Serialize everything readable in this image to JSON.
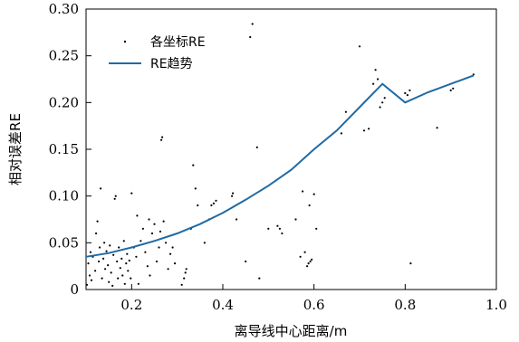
{
  "chart_data": {
    "type": "scatter",
    "xlabel": "离导线中心距离/m",
    "ylabel": "相对误差RE",
    "xlim": [
      0.1,
      1.0
    ],
    "ylim": [
      0.0,
      0.3
    ],
    "xticks": [
      0.2,
      0.4,
      0.6,
      0.8,
      1.0
    ],
    "xtick_labels": [
      "0.2",
      "0.4",
      "0.6",
      "0.8",
      "1.0"
    ],
    "yticks": [
      0,
      0.05,
      0.1,
      0.15,
      0.2,
      0.25,
      0.3
    ],
    "ytick_labels": [
      "0",
      "0.05",
      "0.10",
      "0.15",
      "0.20",
      "0.25",
      "0.30"
    ],
    "grid": false,
    "legend": {
      "placement": "top-left",
      "entries": [
        "各坐标RE",
        "RE趋势"
      ]
    },
    "colors": {
      "scatter": "#000000",
      "trend": "#1f6aa5"
    },
    "series": [
      {
        "name": "各坐标RE",
        "kind": "scatter",
        "points": [
          [
            0.102,
            0.005
          ],
          [
            0.105,
            0.028
          ],
          [
            0.108,
            0.015
          ],
          [
            0.11,
            0.04
          ],
          [
            0.112,
            0.01
          ],
          [
            0.115,
            0.035
          ],
          [
            0.12,
            0.02
          ],
          [
            0.122,
            0.06
          ],
          [
            0.125,
            0.073
          ],
          [
            0.128,
            0.03
          ],
          [
            0.13,
            0.045
          ],
          [
            0.132,
            0.108
          ],
          [
            0.135,
            0.012
          ],
          [
            0.138,
            0.033
          ],
          [
            0.14,
            0.05
          ],
          [
            0.142,
            0.022
          ],
          [
            0.145,
            0.041
          ],
          [
            0.148,
            0.026
          ],
          [
            0.15,
            0.008
          ],
          [
            0.152,
            0.047
          ],
          [
            0.155,
            0.018
          ],
          [
            0.158,
            0.004
          ],
          [
            0.16,
            0.037
          ],
          [
            0.163,
            0.097
          ],
          [
            0.165,
            0.1
          ],
          [
            0.168,
            0.03
          ],
          [
            0.17,
            0.012
          ],
          [
            0.172,
            0.045
          ],
          [
            0.175,
            0.023
          ],
          [
            0.178,
            0.033
          ],
          [
            0.18,
            0.015
          ],
          [
            0.183,
            0.052
          ],
          [
            0.185,
            0.006
          ],
          [
            0.188,
            0.028
          ],
          [
            0.19,
            0.038
          ],
          [
            0.192,
            0.02
          ],
          [
            0.195,
            0.031
          ],
          [
            0.198,
            0.012
          ],
          [
            0.2,
            0.103
          ],
          [
            0.205,
            0.045
          ],
          [
            0.21,
            0.035
          ],
          [
            0.212,
            0.079
          ],
          [
            0.215,
            0.006
          ],
          [
            0.22,
            0.052
          ],
          [
            0.225,
            0.065
          ],
          [
            0.23,
            0.04
          ],
          [
            0.235,
            0.025
          ],
          [
            0.238,
            0.075
          ],
          [
            0.24,
            0.015
          ],
          [
            0.245,
            0.06
          ],
          [
            0.25,
            0.07
          ],
          [
            0.255,
            0.03
          ],
          [
            0.26,
            0.045
          ],
          [
            0.263,
            0.062
          ],
          [
            0.265,
            0.16
          ],
          [
            0.267,
            0.163
          ],
          [
            0.27,
            0.073
          ],
          [
            0.275,
            0.05
          ],
          [
            0.28,
            0.022
          ],
          [
            0.285,
            0.038
          ],
          [
            0.29,
            0.045
          ],
          [
            0.295,
            0.028
          ],
          [
            0.31,
            0.005
          ],
          [
            0.315,
            0.012
          ],
          [
            0.318,
            0.018
          ],
          [
            0.32,
            0.022
          ],
          [
            0.33,
            0.065
          ],
          [
            0.335,
            0.133
          ],
          [
            0.34,
            0.108
          ],
          [
            0.345,
            0.09
          ],
          [
            0.36,
            0.05
          ],
          [
            0.37,
            0.075
          ],
          [
            0.375,
            0.09
          ],
          [
            0.38,
            0.092
          ],
          [
            0.385,
            0.095
          ],
          [
            0.42,
            0.1
          ],
          [
            0.422,
            0.103
          ],
          [
            0.43,
            0.075
          ],
          [
            0.45,
            0.03
          ],
          [
            0.46,
            0.27
          ],
          [
            0.465,
            0.284
          ],
          [
            0.475,
            0.152
          ],
          [
            0.48,
            0.012
          ],
          [
            0.5,
            0.065
          ],
          [
            0.52,
            0.068
          ],
          [
            0.525,
            0.065
          ],
          [
            0.53,
            0.06
          ],
          [
            0.56,
            0.075
          ],
          [
            0.57,
            0.035
          ],
          [
            0.575,
            0.105
          ],
          [
            0.58,
            0.04
          ],
          [
            0.585,
            0.025
          ],
          [
            0.588,
            0.028
          ],
          [
            0.59,
            0.09
          ],
          [
            0.592,
            0.03
          ],
          [
            0.595,
            0.032
          ],
          [
            0.6,
            0.102
          ],
          [
            0.605,
            0.065
          ],
          [
            0.66,
            0.167
          ],
          [
            0.67,
            0.19
          ],
          [
            0.7,
            0.26
          ],
          [
            0.71,
            0.17
          ],
          [
            0.72,
            0.172
          ],
          [
            0.73,
            0.22
          ],
          [
            0.735,
            0.235
          ],
          [
            0.74,
            0.225
          ],
          [
            0.745,
            0.195
          ],
          [
            0.75,
            0.2
          ],
          [
            0.755,
            0.205
          ],
          [
            0.8,
            0.21
          ],
          [
            0.805,
            0.208
          ],
          [
            0.81,
            0.213
          ],
          [
            0.812,
            0.028
          ],
          [
            0.87,
            0.173
          ],
          [
            0.9,
            0.213
          ],
          [
            0.905,
            0.215
          ],
          [
            0.95,
            0.23
          ]
        ]
      },
      {
        "name": "RE趋势",
        "kind": "line",
        "points": [
          [
            0.1,
            0.035
          ],
          [
            0.15,
            0.039
          ],
          [
            0.2,
            0.045
          ],
          [
            0.25,
            0.052
          ],
          [
            0.3,
            0.06
          ],
          [
            0.35,
            0.07
          ],
          [
            0.4,
            0.082
          ],
          [
            0.45,
            0.096
          ],
          [
            0.5,
            0.111
          ],
          [
            0.55,
            0.128
          ],
          [
            0.6,
            0.15
          ],
          [
            0.65,
            0.17
          ],
          [
            0.7,
            0.195
          ],
          [
            0.75,
            0.22
          ],
          [
            0.8,
            0.2
          ],
          [
            0.85,
            0.211
          ],
          [
            0.9,
            0.22
          ],
          [
            0.95,
            0.229
          ]
        ]
      }
    ]
  }
}
